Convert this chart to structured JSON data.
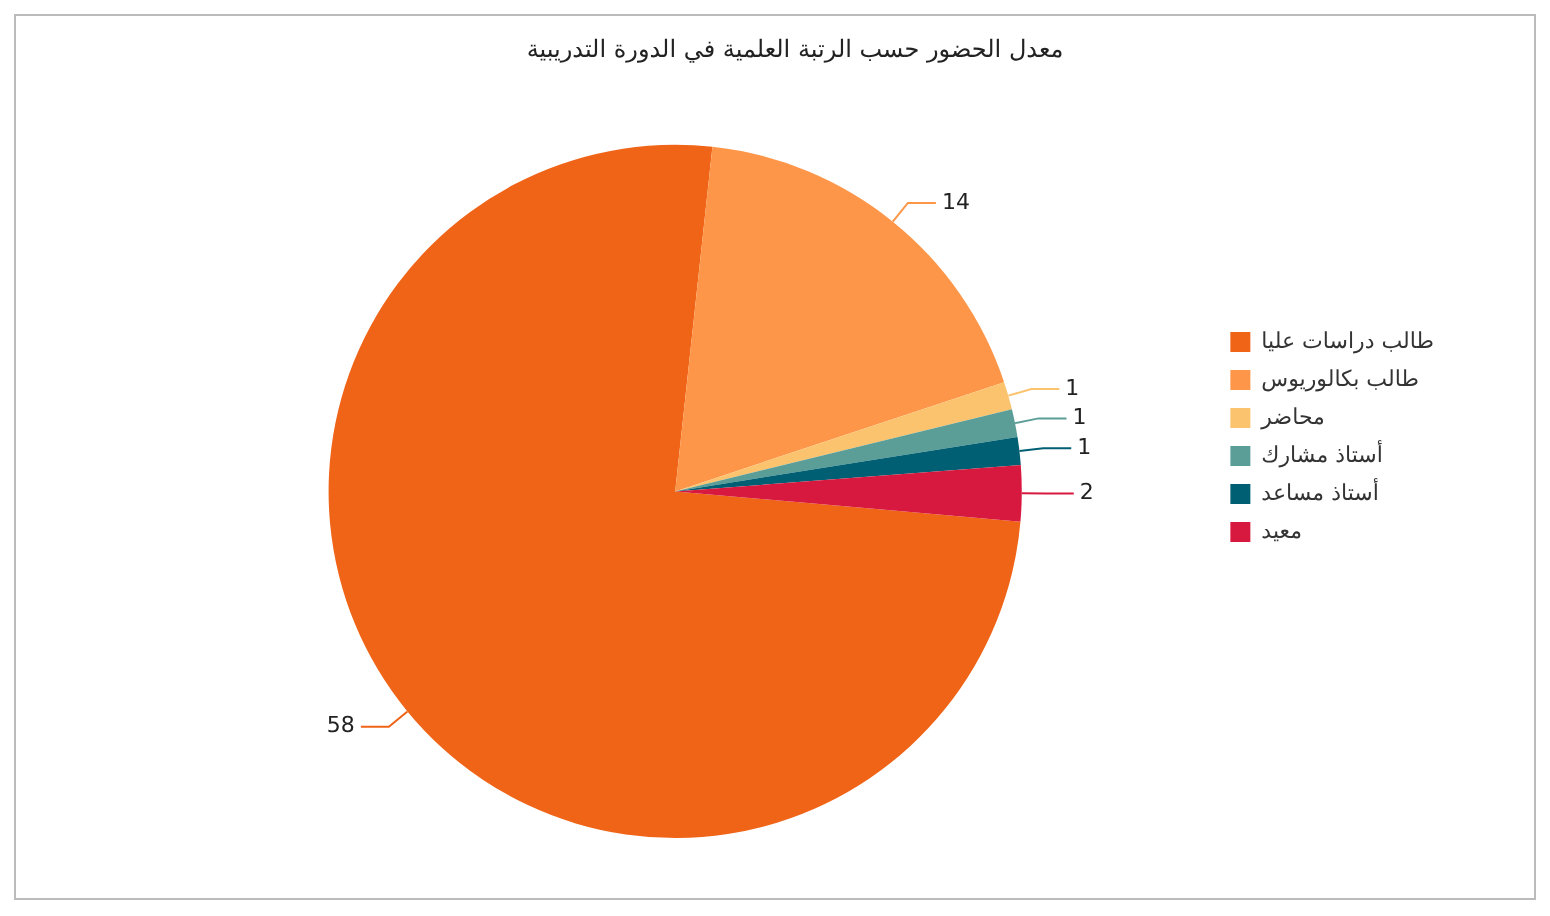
{
  "chart_data": {
    "type": "pie",
    "title": "معدل الحضور حسب الرتبة العلمية في الدورة التدريبية",
    "categories": [
      "طالب دراسات عليا",
      "طالب بكالوريوس",
      "محاضر",
      "أستاذ مشارك",
      "أستاذ مساعد",
      "معيد"
    ],
    "values": [
      58,
      14,
      1,
      1,
      1,
      2
    ],
    "colors": [
      "#f06418",
      "#fd9648",
      "#fcc36e",
      "#5b9e97",
      "#005f73",
      "#d8193f"
    ],
    "data_labels": true,
    "legend": "right"
  }
}
